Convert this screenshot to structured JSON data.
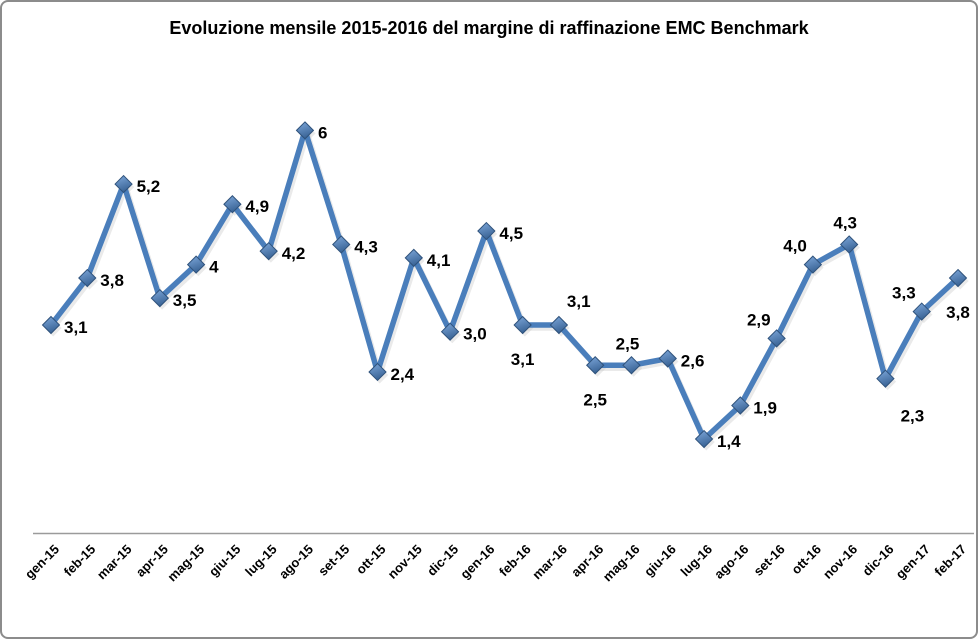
{
  "chart_data": {
    "type": "line",
    "title": "Evoluzione mensile 2015-2016 del margine di raffinazione EMC Benchmark",
    "categories": [
      "gen-15",
      "feb-15",
      "mar-15",
      "apr-15",
      "mag-15",
      "giu-15",
      "lug-15",
      "ago-15",
      "set-15",
      "ott-15",
      "nov-15",
      "dic-15",
      "gen-16",
      "feb-16",
      "mar-16",
      "apr-16",
      "mag-16",
      "giu-16",
      "lug-16",
      "ago-16",
      "set-16",
      "ott-16",
      "nov-16",
      "dic-16",
      "gen-17",
      "feb-17"
    ],
    "values": [
      3.1,
      3.8,
      5.2,
      3.5,
      4,
      4.9,
      4.2,
      6,
      4.3,
      2.4,
      4.1,
      3.0,
      4.5,
      3.1,
      3.1,
      2.5,
      2.5,
      2.6,
      1.4,
      1.9,
      2.9,
      4.0,
      4.3,
      2.3,
      3.3,
      3.8
    ],
    "point_labels": [
      "3,1",
      "3,8",
      "5,2",
      "3,5",
      "4",
      "4,9",
      "4,2",
      "6",
      "4,3",
      "2,4",
      "4,1",
      "3,0",
      "4,5",
      "3,1",
      "3,1",
      "2,5",
      "2,5",
      "2,6",
      "1,4",
      "1,9",
      "2,9",
      "4,0",
      "4,3",
      "2,3",
      "3,3",
      "3,8"
    ],
    "label_placements": [
      "right",
      "right",
      "right",
      "right",
      "right",
      "right",
      "right",
      "right",
      "right",
      "right",
      "right",
      "right",
      "right",
      "below",
      "above-right",
      "below",
      "above",
      "right",
      "right",
      "right",
      "above-left",
      "above-left",
      "above",
      "below-right",
      "above-left",
      "below"
    ],
    "xlabel": "",
    "ylabel": "",
    "ylim": [
      0,
      7
    ],
    "grid": false,
    "legend": false,
    "marker_shape": "diamond",
    "x_tick_rotation_deg": 45,
    "colors": {
      "line": "#4A7EBB",
      "marker_gradient_top": "#7FA9DC",
      "marker_gradient_bottom": "#3A6496",
      "marker_border": "#2F527B",
      "shadow": "rgba(120,120,120,0.35)",
      "axis_line": "#9B9B9B",
      "label_text": "#000000",
      "title_text": "#000000",
      "frame_border": "#8C8C8C",
      "background": "#FFFFFF"
    }
  }
}
